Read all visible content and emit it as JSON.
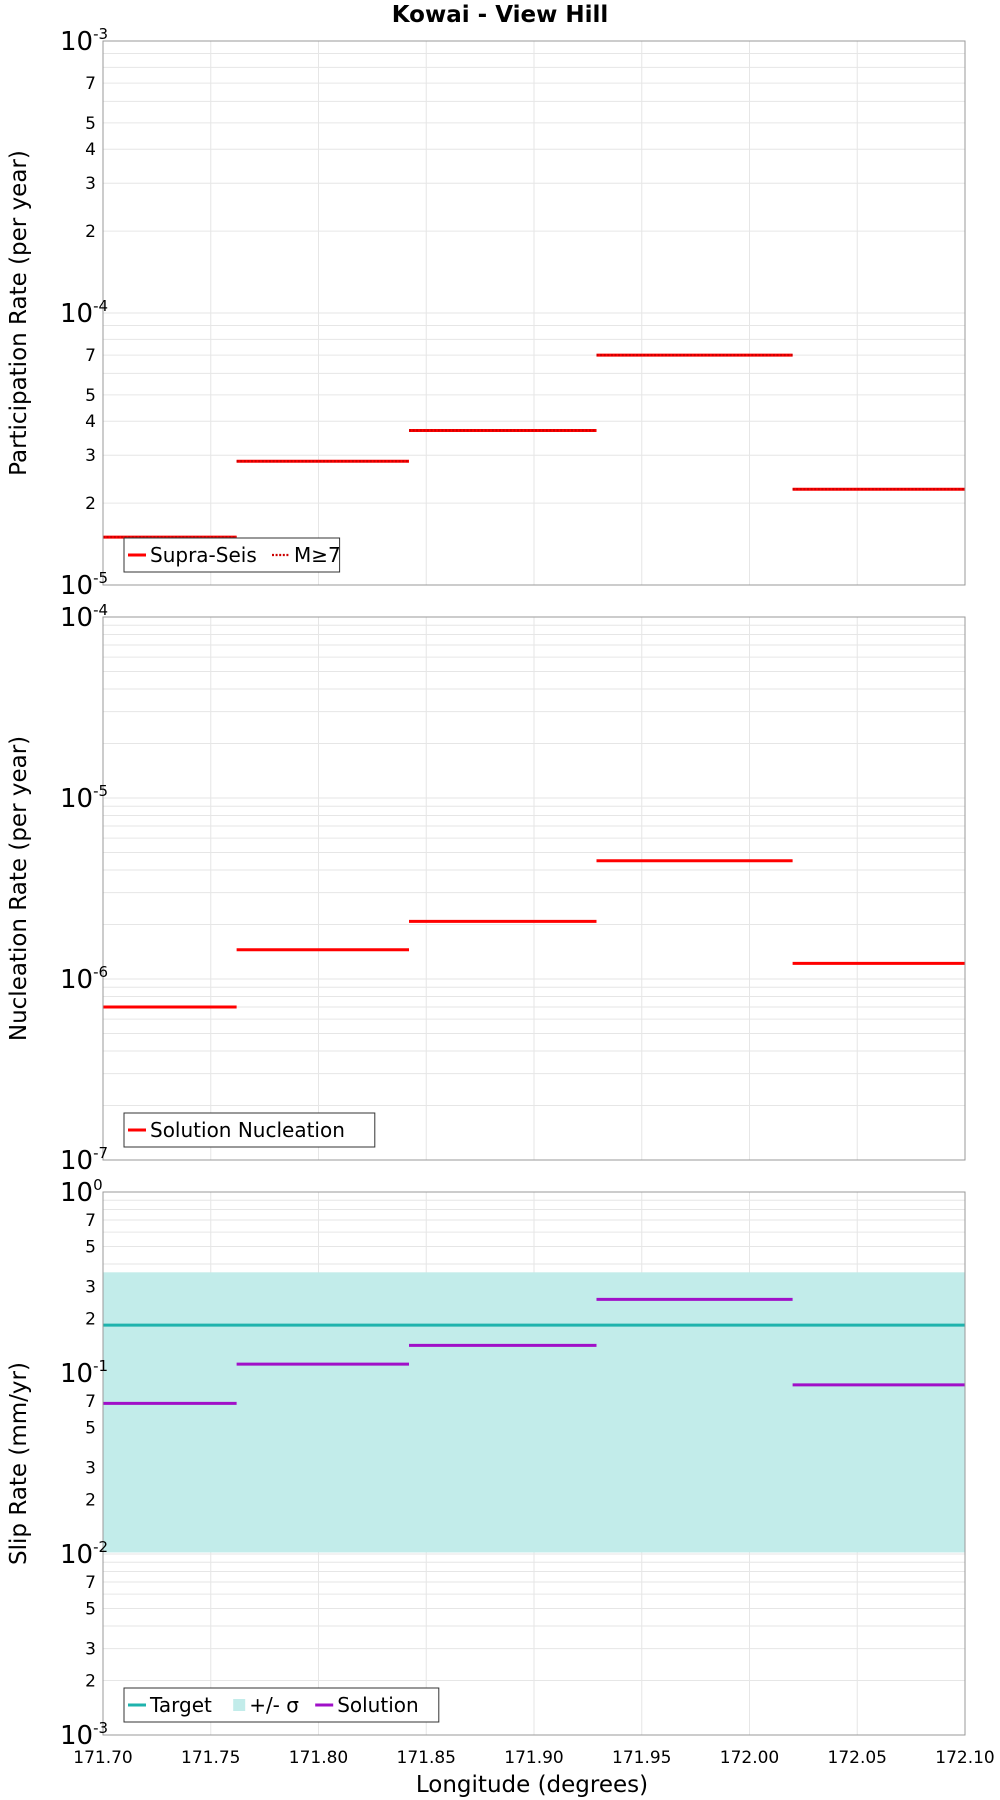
{
  "chart_data": {
    "title": "Kowai - View Hill",
    "xlabel": "Longitude (degrees)",
    "xlim": [
      171.7,
      172.1
    ],
    "x_ticks": [
      "171.70",
      "171.75",
      "171.80",
      "171.85",
      "171.90",
      "171.95",
      "172.00",
      "172.05",
      "172.10"
    ],
    "subplots": [
      {
        "type": "line",
        "scale": "log",
        "ylabel": "Participation Rate (per year)",
        "ylim_exponents": [
          -5,
          -3
        ],
        "series": [
          {
            "name": "Supra-Seis",
            "color": "#ff0000",
            "style": "solid",
            "segments": [
              {
                "x0": 171.7,
                "x1": 171.762,
                "y": 1.5e-05
              },
              {
                "x0": 171.762,
                "x1": 171.842,
                "y": 2.85e-05
              },
              {
                "x0": 171.842,
                "x1": 171.929,
                "y": 3.7e-05
              },
              {
                "x0": 171.929,
                "x1": 172.02,
                "y": 7e-05
              },
              {
                "x0": 172.02,
                "x1": 172.105,
                "y": 2.25e-05
              }
            ]
          },
          {
            "name": "M≥7",
            "color": "#ff0000",
            "style": "dotted",
            "segments": [
              {
                "x0": 171.7,
                "x1": 171.762,
                "y": 1.5e-05
              },
              {
                "x0": 171.762,
                "x1": 171.842,
                "y": 2.85e-05
              },
              {
                "x0": 171.842,
                "x1": 171.929,
                "y": 3.7e-05
              },
              {
                "x0": 171.929,
                "x1": 172.02,
                "y": 7e-05
              },
              {
                "x0": 172.02,
                "x1": 172.105,
                "y": 2.25e-05
              }
            ]
          }
        ],
        "legend": [
          "Supra-Seis",
          "M≥7"
        ],
        "legend_position": "bottom-left"
      },
      {
        "type": "line",
        "scale": "log",
        "ylabel": "Nucleation Rate (per year)",
        "ylim_exponents": [
          -7,
          -4
        ],
        "series": [
          {
            "name": "Solution Nucleation",
            "color": "#ff0000",
            "style": "solid",
            "segments": [
              {
                "x0": 171.7,
                "x1": 171.762,
                "y": 7e-07
              },
              {
                "x0": 171.762,
                "x1": 171.842,
                "y": 1.45e-06
              },
              {
                "x0": 171.842,
                "x1": 171.929,
                "y": 2.08e-06
              },
              {
                "x0": 171.929,
                "x1": 172.02,
                "y": 4.5e-06
              },
              {
                "x0": 172.02,
                "x1": 172.105,
                "y": 1.22e-06
              }
            ]
          }
        ],
        "legend": [
          "Solution Nucleation"
        ],
        "legend_position": "bottom-left"
      },
      {
        "type": "line",
        "scale": "log",
        "ylabel": "Slip Rate (mm/yr)",
        "ylim_exponents": [
          -3,
          0
        ],
        "band": {
          "name": "+/- σ",
          "color": "#c2ecea",
          "y_low": 0.0102,
          "y_high": 0.36
        },
        "series": [
          {
            "name": "Target",
            "color": "#1fb3ad",
            "style": "solid",
            "segments": [
              {
                "x0": 171.7,
                "x1": 172.105,
                "y": 0.184
              }
            ]
          },
          {
            "name": "Solution",
            "color": "#a010c8",
            "style": "solid",
            "segments": [
              {
                "x0": 171.7,
                "x1": 171.762,
                "y": 0.068
              },
              {
                "x0": 171.762,
                "x1": 171.842,
                "y": 0.112
              },
              {
                "x0": 171.842,
                "x1": 171.929,
                "y": 0.142
              },
              {
                "x0": 171.929,
                "x1": 172.02,
                "y": 0.255
              },
              {
                "x0": 172.02,
                "x1": 172.105,
                "y": 0.086
              }
            ]
          }
        ],
        "legend": [
          "Target",
          "+/- σ",
          "Solution"
        ],
        "legend_position": "bottom-left"
      }
    ]
  }
}
